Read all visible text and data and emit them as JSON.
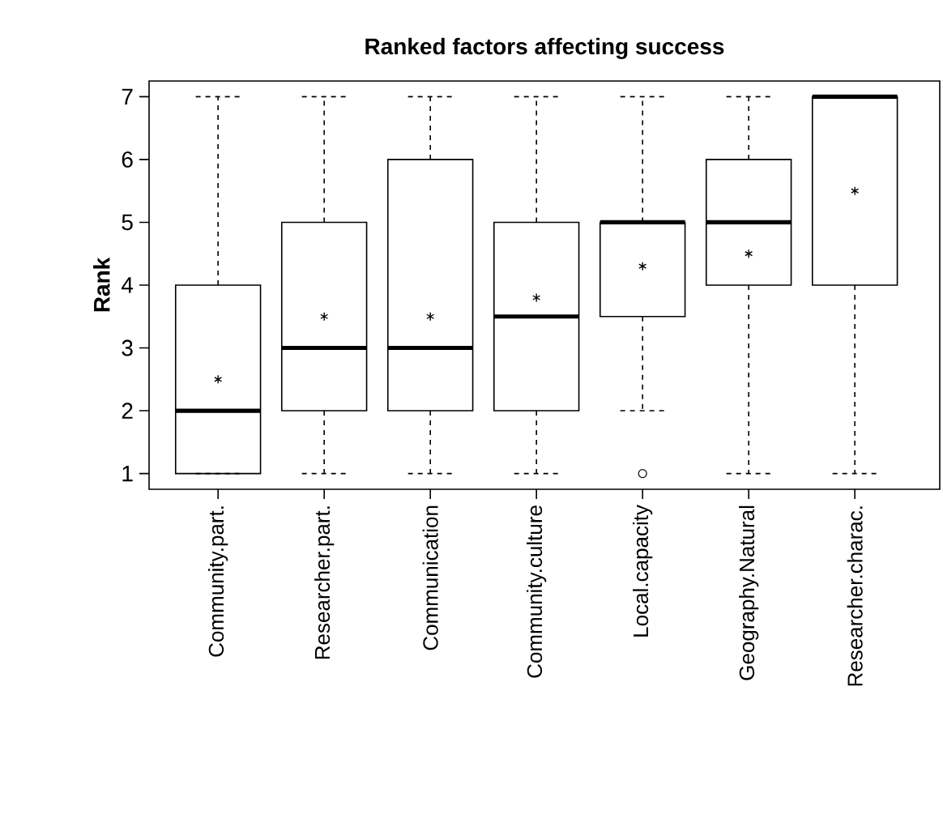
{
  "chart_data": {
    "type": "box",
    "title": "Ranked factors affecting success",
    "ylabel": "Rank",
    "categories": [
      "Community.part.",
      "Researcher.part.",
      "Communication",
      "Community.culture",
      "Local.capacity",
      "Geography.Natural",
      "Researcher.charac."
    ],
    "ylim": [
      0.75,
      7.25
    ],
    "yticks": [
      1,
      2,
      3,
      4,
      5,
      6,
      7
    ],
    "boxes": [
      {
        "low": 1,
        "q1": 1,
        "median": 2,
        "q3": 4,
        "high": 7,
        "mean": 2.5
      },
      {
        "low": 1,
        "q1": 2,
        "median": 3,
        "q3": 5,
        "high": 7,
        "mean": 3.5
      },
      {
        "low": 1,
        "q1": 2,
        "median": 3,
        "q3": 6,
        "high": 7,
        "mean": 3.5
      },
      {
        "low": 1,
        "q1": 2,
        "median": 3.5,
        "q3": 5,
        "high": 7,
        "mean": 3.8
      },
      {
        "low": 2,
        "q1": 3.5,
        "median": 5,
        "q3": 5,
        "high": 7,
        "mean": 4.3,
        "outliers": [
          1
        ]
      },
      {
        "low": 1,
        "q1": 4,
        "median": 5,
        "q3": 6,
        "high": 7,
        "mean": 4.5
      },
      {
        "low": 1,
        "q1": 4,
        "median": 7,
        "q3": 7,
        "high": 7,
        "mean": 5.5
      }
    ]
  }
}
